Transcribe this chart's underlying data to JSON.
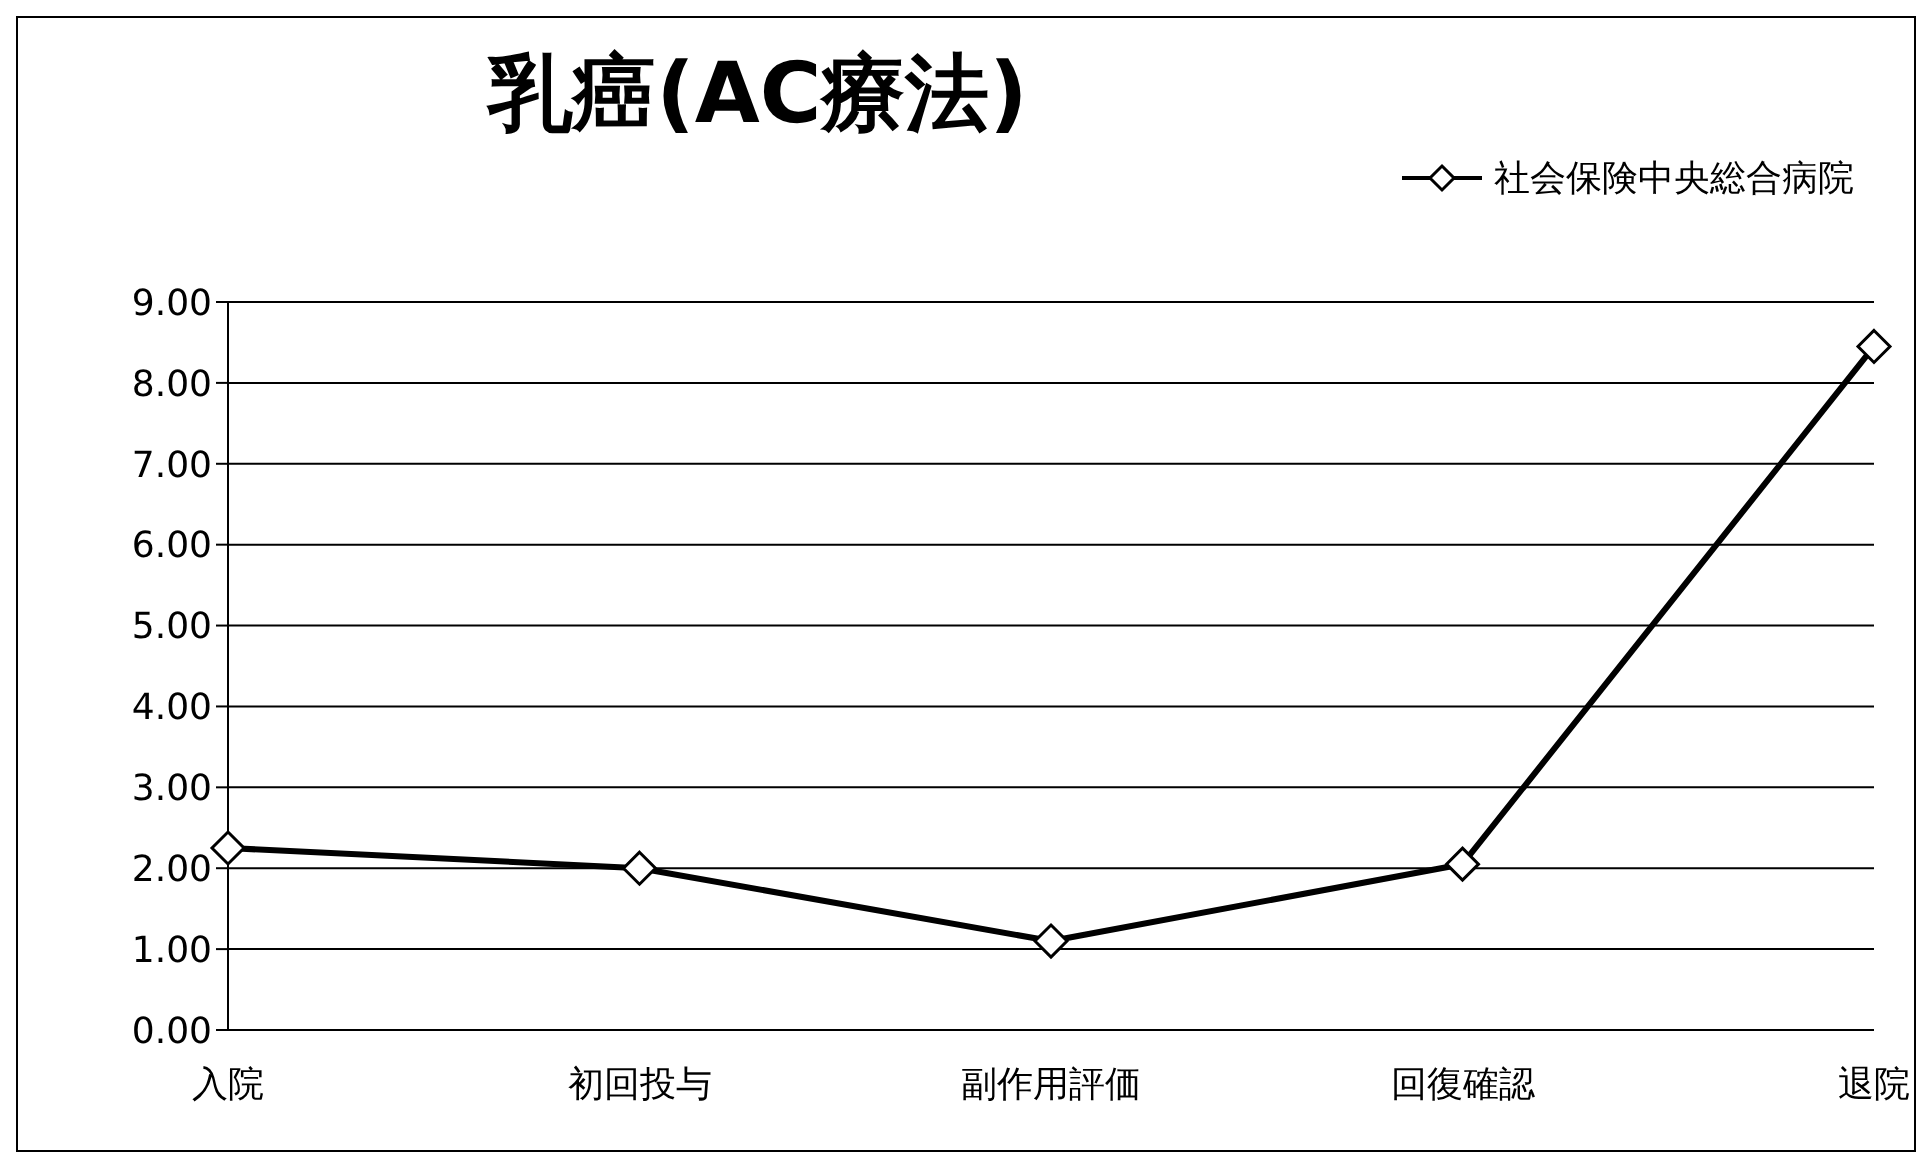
{
  "chart_data": {
    "type": "line",
    "title": "乳癌(AC療法)",
    "categories": [
      "入院",
      "初回投与",
      "副作用評価",
      "回復確認",
      "退院"
    ],
    "series": [
      {
        "name": "社会保険中央総合病院",
        "color": "#000000",
        "values": [
          2.25,
          2.0,
          1.1,
          2.05,
          8.45
        ]
      }
    ],
    "ylim": [
      0,
      9
    ],
    "yticks": [
      {
        "value": 0,
        "label": "0.00"
      },
      {
        "value": 1,
        "label": "1.00"
      },
      {
        "value": 2,
        "label": "2.00"
      },
      {
        "value": 3,
        "label": "3.00"
      },
      {
        "value": 4,
        "label": "4.00"
      },
      {
        "value": 5,
        "label": "5.00"
      },
      {
        "value": 6,
        "label": "6.00"
      },
      {
        "value": 7,
        "label": "7.00"
      },
      {
        "value": 8,
        "label": "8.00"
      },
      {
        "value": 9,
        "label": "9.00"
      }
    ],
    "grid": "y",
    "legend": "top right",
    "marker": "diamond",
    "line_style": "solid"
  }
}
